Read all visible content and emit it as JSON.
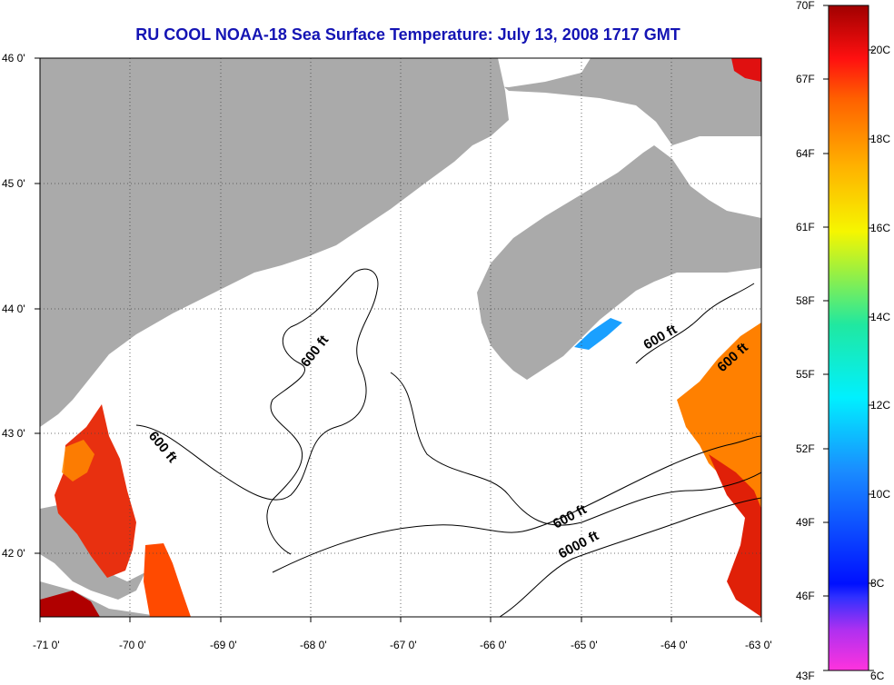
{
  "title": "RU COOL  NOAA-18  Sea Surface Temperature:  July 13, 2008 1717 GMT",
  "longitude_ticks": [
    "-71 0'",
    "-70 0'",
    "-69 0'",
    "-68 0'",
    "-67 0'",
    "-66 0'",
    "-65 0'",
    "-64 0'",
    "-63 0'"
  ],
  "latitude_ticks": [
    "46 0'",
    "45 0'",
    "44 0'",
    "43 0'",
    "42 0'"
  ],
  "contour_labels": [
    "600 ft",
    "600 ft",
    "600 ft",
    "600 ft",
    "600 ft",
    "6000 ft"
  ],
  "colorbar": {
    "fahrenheit": [
      "70F",
      "67F",
      "64F",
      "61F",
      "58F",
      "55F",
      "52F",
      "49F",
      "46F",
      "43F"
    ],
    "celsius": [
      "20C",
      "18C",
      "16C",
      "14C",
      "12C",
      "10C",
      "8C",
      "6C"
    ]
  },
  "colors": {
    "land": "#aaaaaa",
    "ocean_no_data": "#ffffff",
    "title": "#1414b4",
    "grid": "#000000"
  }
}
